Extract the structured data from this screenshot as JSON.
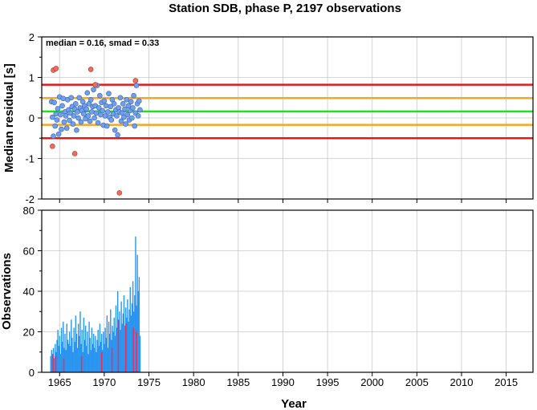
{
  "title": "Station SDB, phase P, 2197 observations",
  "chart_data": [
    {
      "type": "scatter",
      "panel": "residuals",
      "ylabel": "Median residual [s]",
      "ylim": [
        -2,
        2
      ],
      "xlim": [
        1963,
        2018
      ],
      "grid": true,
      "annotation": "median = 0.16, smad = 0.33",
      "yticks": [
        "2",
        "1",
        "0",
        "-1",
        "-2"
      ],
      "reference_lines": [
        {
          "y": 0.16,
          "color": "#19e619",
          "meaning": "median"
        },
        {
          "y": 0.49,
          "color": "#f5a623",
          "meaning": "median + 1 smad"
        },
        {
          "y": -0.17,
          "color": "#f5a623",
          "meaning": "median - 1 smad"
        },
        {
          "y": 0.82,
          "color": "#e61919",
          "meaning": "median + 2 smad"
        },
        {
          "y": -0.5,
          "color": "#e61919",
          "meaning": "median - 2 smad"
        }
      ],
      "point_colors": {
        "normal": "#6fa0f0",
        "outlier": "#f26b5b"
      },
      "points": [
        [
          1964.1,
          0.4
        ],
        [
          1964.2,
          0.02
        ],
        [
          1964.3,
          -0.45
        ],
        [
          1964.4,
          0.38
        ],
        [
          1964.5,
          -0.2
        ],
        [
          1964.6,
          0.1
        ],
        [
          1964.7,
          -0.05
        ],
        [
          1964.8,
          0.23
        ],
        [
          1964.9,
          -0.4
        ],
        [
          1965.0,
          0.52
        ],
        [
          1965.1,
          0.08
        ],
        [
          1965.2,
          -0.28
        ],
        [
          1965.3,
          0.3
        ],
        [
          1965.4,
          0.48
        ],
        [
          1965.5,
          -0.1
        ],
        [
          1965.6,
          0.15
        ],
        [
          1965.7,
          0.05
        ],
        [
          1965.8,
          -0.25
        ],
        [
          1965.9,
          0.45
        ],
        [
          1966.0,
          0.2
        ],
        [
          1966.1,
          -0.06
        ],
        [
          1966.2,
          0.12
        ],
        [
          1966.3,
          0.5
        ],
        [
          1966.4,
          0.28
        ],
        [
          1966.5,
          -0.15
        ],
        [
          1966.6,
          0.05
        ],
        [
          1966.7,
          0.22
        ],
        [
          1966.8,
          0.35
        ],
        [
          1966.9,
          -0.3
        ],
        [
          1967.0,
          0.15
        ],
        [
          1967.1,
          0.0
        ],
        [
          1967.2,
          0.5
        ],
        [
          1967.3,
          0.25
        ],
        [
          1967.4,
          -0.1
        ],
        [
          1967.5,
          0.18
        ],
        [
          1967.6,
          0.4
        ],
        [
          1967.7,
          0.1
        ],
        [
          1967.8,
          0.3
        ],
        [
          1967.9,
          -0.02
        ],
        [
          1968.0,
          0.22
        ],
        [
          1968.1,
          0.62
        ],
        [
          1968.2,
          0.05
        ],
        [
          1968.3,
          0.35
        ],
        [
          1968.4,
          -0.08
        ],
        [
          1968.5,
          0.45
        ],
        [
          1968.6,
          0.15
        ],
        [
          1968.7,
          0.28
        ],
        [
          1968.8,
          0.7
        ],
        [
          1968.9,
          0.0
        ],
        [
          1969.0,
          0.3
        ],
        [
          1969.1,
          0.12
        ],
        [
          1969.2,
          0.8
        ],
        [
          1969.3,
          -0.12
        ],
        [
          1969.4,
          0.25
        ],
        [
          1969.5,
          0.55
        ],
        [
          1969.6,
          0.08
        ],
        [
          1969.7,
          0.38
        ],
        [
          1969.8,
          0.18
        ],
        [
          1969.9,
          -0.18
        ],
        [
          1970.0,
          0.42
        ],
        [
          1970.1,
          0.05
        ],
        [
          1970.2,
          0.3
        ],
        [
          1970.3,
          -0.2
        ],
        [
          1970.4,
          0.15
        ],
        [
          1970.5,
          0.6
        ],
        [
          1970.6,
          0.02
        ],
        [
          1970.7,
          0.28
        ],
        [
          1970.8,
          -0.05
        ],
        [
          1970.9,
          0.45
        ],
        [
          1971.0,
          0.1
        ],
        [
          1971.1,
          0.35
        ],
        [
          1971.2,
          -0.3
        ],
        [
          1971.3,
          0.2
        ],
        [
          1971.4,
          0.05
        ],
        [
          1971.5,
          -0.42
        ],
        [
          1971.6,
          0.25
        ],
        [
          1971.7,
          0.15
        ],
        [
          1971.8,
          0.5
        ],
        [
          1971.9,
          -0.08
        ],
        [
          1972.0,
          0.12
        ],
        [
          1972.1,
          0.35
        ],
        [
          1972.2,
          0.02
        ],
        [
          1972.3,
          0.22
        ],
        [
          1972.4,
          -0.15
        ],
        [
          1972.5,
          0.45
        ],
        [
          1972.6,
          0.08
        ],
        [
          1972.7,
          0.3
        ],
        [
          1972.8,
          -0.05
        ],
        [
          1972.9,
          0.18
        ],
        [
          1973.0,
          0.4
        ],
        [
          1973.1,
          0.0
        ],
        [
          1973.2,
          0.25
        ],
        [
          1973.3,
          0.55
        ],
        [
          1973.4,
          -0.2
        ],
        [
          1973.5,
          0.12
        ],
        [
          1973.6,
          0.8
        ],
        [
          1973.7,
          0.35
        ],
        [
          1973.8,
          0.05
        ],
        [
          1973.9,
          0.42
        ],
        [
          1974.0,
          0.2
        ]
      ],
      "outliers": [
        [
          1964.3,
          1.18
        ],
        [
          1964.6,
          1.22
        ],
        [
          1964.2,
          -0.7
        ],
        [
          1966.7,
          -0.88
        ],
        [
          1968.5,
          1.2
        ],
        [
          1969.0,
          0.82
        ],
        [
          1971.7,
          -1.85
        ],
        [
          1973.5,
          0.92
        ]
      ]
    },
    {
      "type": "bar",
      "panel": "observations",
      "xlabel": "Year",
      "ylabel": "Observations",
      "ylim": [
        0,
        80
      ],
      "xlim": [
        1963,
        2018
      ],
      "grid": true,
      "yticks": [
        "80",
        "60",
        "40",
        "20",
        "0"
      ],
      "xticks": [
        "1965",
        "1970",
        "1975",
        "1980",
        "1985",
        "1990",
        "1995",
        "2000",
        "2005",
        "2010",
        "2015"
      ],
      "series": [
        {
          "color": "#2a95f0",
          "values": [
            [
              1964.0,
              8
            ],
            [
              1964.1,
              11
            ],
            [
              1964.2,
              9
            ],
            [
              1964.3,
              12
            ],
            [
              1964.4,
              7
            ],
            [
              1964.5,
              14
            ],
            [
              1964.6,
              10
            ],
            [
              1964.7,
              16
            ],
            [
              1964.8,
              21
            ],
            [
              1964.9,
              13
            ],
            [
              1965.0,
              18
            ],
            [
              1965.1,
              9
            ],
            [
              1965.2,
              22
            ],
            [
              1965.3,
              15
            ],
            [
              1965.4,
              25
            ],
            [
              1965.5,
              12
            ],
            [
              1965.6,
              19
            ],
            [
              1965.7,
              11
            ],
            [
              1965.8,
              24
            ],
            [
              1965.9,
              16
            ],
            [
              1966.0,
              14
            ],
            [
              1966.1,
              20
            ],
            [
              1966.2,
              13
            ],
            [
              1966.3,
              26
            ],
            [
              1966.4,
              17
            ],
            [
              1966.5,
              10
            ],
            [
              1966.6,
              22
            ],
            [
              1966.7,
              15
            ],
            [
              1966.8,
              28
            ],
            [
              1966.9,
              19
            ],
            [
              1967.0,
              12
            ],
            [
              1967.1,
              24
            ],
            [
              1967.2,
              18
            ],
            [
              1967.3,
              30
            ],
            [
              1967.4,
              14
            ],
            [
              1967.5,
              21
            ],
            [
              1967.6,
              10
            ],
            [
              1967.7,
              27
            ],
            [
              1967.8,
              16
            ],
            [
              1967.9,
              23
            ],
            [
              1968.0,
              13
            ],
            [
              1968.1,
              20
            ],
            [
              1968.2,
              9
            ],
            [
              1968.3,
              25
            ],
            [
              1968.4,
              17
            ],
            [
              1968.5,
              11
            ],
            [
              1968.6,
              22
            ],
            [
              1968.7,
              14
            ],
            [
              1968.8,
              19
            ],
            [
              1968.9,
              12
            ],
            [
              1969.0,
              18
            ],
            [
              1969.1,
              10
            ],
            [
              1969.2,
              16
            ],
            [
              1969.3,
              21
            ],
            [
              1969.4,
              13
            ],
            [
              1969.5,
              24
            ],
            [
              1969.6,
              15
            ],
            [
              1969.7,
              19
            ],
            [
              1969.8,
              11
            ],
            [
              1969.9,
              20
            ],
            [
              1970.0,
              14
            ],
            [
              1970.1,
              22
            ],
            [
              1970.2,
              17
            ],
            [
              1970.3,
              28
            ],
            [
              1970.4,
              12
            ],
            [
              1970.5,
              25
            ],
            [
              1970.6,
              19
            ],
            [
              1970.7,
              31
            ],
            [
              1970.8,
              16
            ],
            [
              1970.9,
              23
            ],
            [
              1971.0,
              20
            ],
            [
              1971.1,
              27
            ],
            [
              1971.2,
              18
            ],
            [
              1971.3,
              33
            ],
            [
              1971.4,
              22
            ],
            [
              1971.5,
              40
            ],
            [
              1971.6,
              26
            ],
            [
              1971.7,
              30
            ],
            [
              1971.8,
              21
            ],
            [
              1971.9,
              35
            ],
            [
              1972.0,
              24
            ],
            [
              1972.1,
              29
            ],
            [
              1972.2,
              38
            ],
            [
              1972.3,
              23
            ],
            [
              1972.4,
              32
            ],
            [
              1972.5,
              27
            ],
            [
              1972.6,
              36
            ],
            [
              1972.7,
              25
            ],
            [
              1972.8,
              31
            ],
            [
              1972.9,
              42
            ],
            [
              1973.0,
              28
            ],
            [
              1973.1,
              34
            ],
            [
              1973.2,
              45
            ],
            [
              1973.3,
              30
            ],
            [
              1973.4,
              38
            ],
            [
              1973.5,
              67
            ],
            [
              1973.6,
              33
            ],
            [
              1973.7,
              58
            ],
            [
              1973.8,
              40
            ],
            [
              1973.9,
              47
            ],
            [
              1974.0,
              18
            ]
          ]
        },
        {
          "color": "#e8305a",
          "values": [
            [
              1964.25,
              9
            ],
            [
              1964.55,
              8
            ],
            [
              1965.45,
              7
            ],
            [
              1967.45,
              8
            ],
            [
              1969.7,
              10
            ],
            [
              1970.85,
              12
            ],
            [
              1971.55,
              26
            ],
            [
              1972.4,
              24
            ],
            [
              1973.25,
              22
            ],
            [
              1973.6,
              20
            ]
          ]
        }
      ]
    }
  ]
}
